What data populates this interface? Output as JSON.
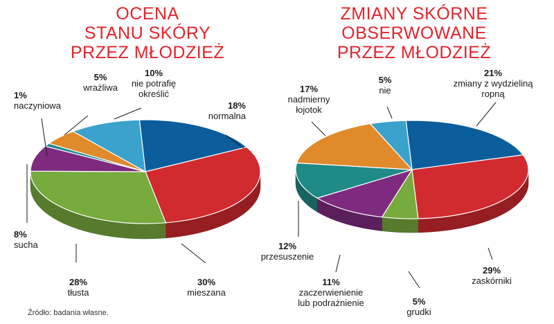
{
  "source_note": "Źródło: badania własne.",
  "chart_data": [
    {
      "type": "pie",
      "title_lines": [
        "OCENA",
        "STANU SKÓRY",
        "PRZEZ MŁODZIEŻ"
      ],
      "slices": [
        {
          "value": 18,
          "pct_label": "18%",
          "label_lines": [
            "normalna"
          ],
          "color": "#0b5d9c"
        },
        {
          "value": 30,
          "pct_label": "30%",
          "label_lines": [
            "mieszana"
          ],
          "color": "#d12a2f"
        },
        {
          "value": 28,
          "pct_label": "28%",
          "label_lines": [
            "tłusta"
          ],
          "color": "#77ab3d"
        },
        {
          "value": 8,
          "pct_label": "8%",
          "label_lines": [
            "sucha"
          ],
          "color": "#7e2b7f"
        },
        {
          "value": 1,
          "pct_label": "1%",
          "label_lines": [
            "naczyniowa"
          ],
          "color": "#1f8a86"
        },
        {
          "value": 5,
          "pct_label": "5%",
          "label_lines": [
            "wrażliwa"
          ],
          "color": "#e08a2c"
        },
        {
          "value": 10,
          "pct_label": "10%",
          "label_lines": [
            "nie potrafię",
            "określić"
          ],
          "color": "#3aa2cc"
        }
      ]
    },
    {
      "type": "pie",
      "title_lines": [
        "ZMIANY SKÓRNE",
        "OBSERWOWANE",
        "PRZEZ MŁODZIEŻ"
      ],
      "slices": [
        {
          "value": 21,
          "pct_label": "21%",
          "label_lines": [
            "zmiany z wydzieliną",
            "ropną"
          ],
          "color": "#0b5d9c"
        },
        {
          "value": 29,
          "pct_label": "29%",
          "label_lines": [
            "zaskórniki"
          ],
          "color": "#d12a2f"
        },
        {
          "value": 5,
          "pct_label": "5%",
          "label_lines": [
            "grudki"
          ],
          "color": "#77ab3d"
        },
        {
          "value": 11,
          "pct_label": "11%",
          "label_lines": [
            "zaczerwienienie",
            "lub podrażnienie"
          ],
          "color": "#7e2b7f"
        },
        {
          "value": 12,
          "pct_label": "12%",
          "label_lines": [
            "przesuszenie"
          ],
          "color": "#1f8a86"
        },
        {
          "value": 17,
          "pct_label": "17%",
          "label_lines": [
            "nadmierny",
            "łojotok"
          ],
          "color": "#e08a2c"
        },
        {
          "value": 5,
          "pct_label": "5%",
          "label_lines": [
            "nie"
          ],
          "color": "#3aa2cc"
        }
      ]
    }
  ]
}
